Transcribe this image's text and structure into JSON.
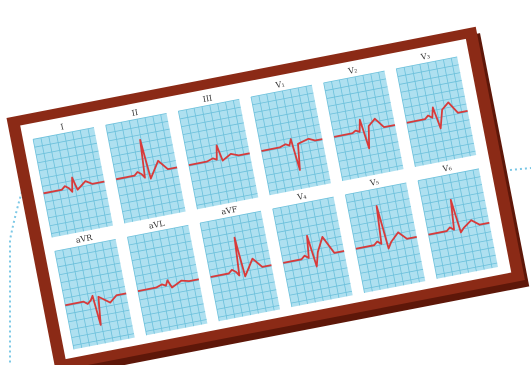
{
  "colors": {
    "frame": "#8b2a16",
    "frame_dark": "#5e1709",
    "board": "#ffffff",
    "paper": "#aee0f0",
    "grid": "#6cc0db",
    "trace": "#d83a3a",
    "dotted_line": "#7cc8e6"
  },
  "leads": {
    "row1": [
      {
        "label": "I",
        "wave": "small"
      },
      {
        "label": "II",
        "wave": "tall"
      },
      {
        "label": "III",
        "wave": "flat"
      },
      {
        "label": "V₁",
        "wave": "deep"
      },
      {
        "label": "V₂",
        "wave": "rs"
      },
      {
        "label": "V₃",
        "wave": "twave"
      }
    ],
    "row2": [
      {
        "label": "aVR",
        "wave": "inverted"
      },
      {
        "label": "aVL",
        "wave": "low"
      },
      {
        "label": "aVF",
        "wave": "tall"
      },
      {
        "label": "V₄",
        "wave": "qrs"
      },
      {
        "label": "V₅",
        "wave": "spike"
      },
      {
        "label": "V₆",
        "wave": "spike2"
      }
    ]
  }
}
